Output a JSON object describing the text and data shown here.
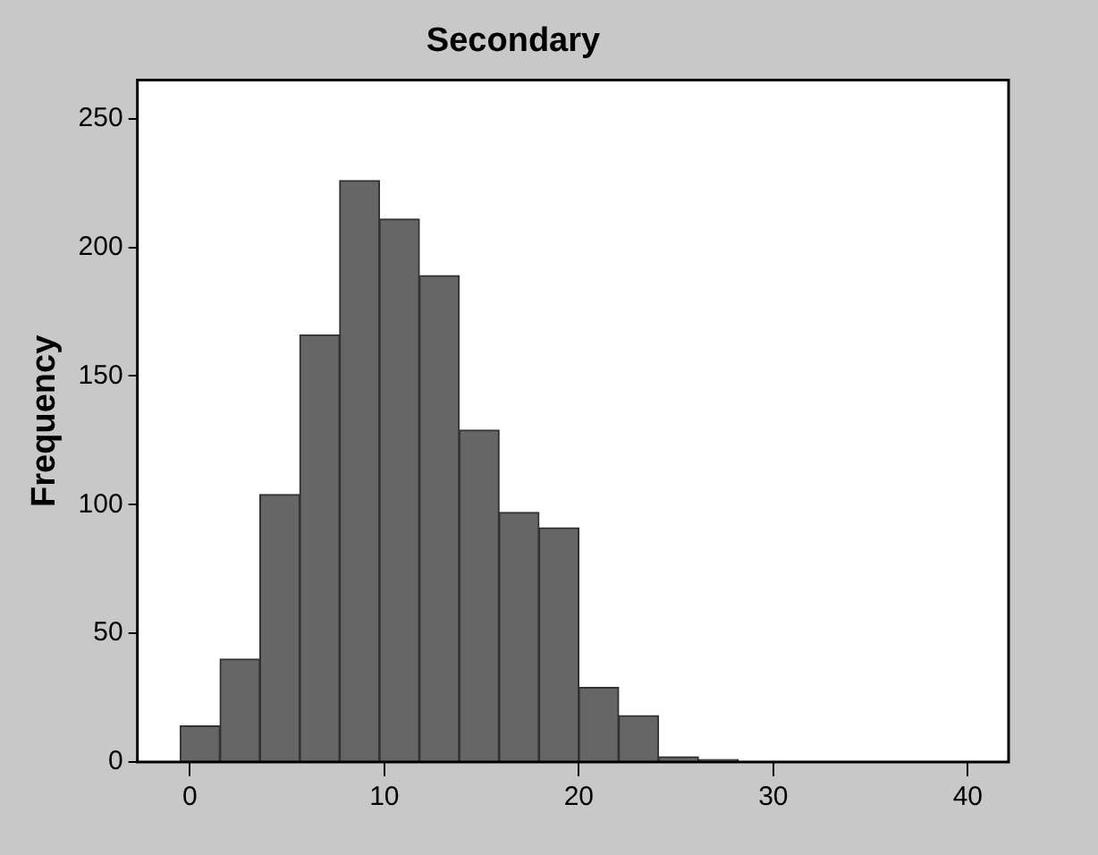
{
  "chart_data": {
    "type": "histogram",
    "title": "Secondary",
    "ylabel": "Frequency",
    "bins": [
      -0.5,
      1.55,
      3.6,
      5.65,
      7.7,
      9.75,
      11.8,
      13.85,
      15.9,
      17.95,
      20,
      22.05,
      24.1,
      26.15,
      28.2,
      30.25,
      32.3,
      34.35,
      36.4,
      38.45,
      40.5
    ],
    "values": [
      14,
      40,
      104,
      166,
      226,
      211,
      189,
      129,
      97,
      91,
      29,
      18,
      2,
      1,
      0,
      0,
      0,
      0,
      0,
      0
    ],
    "color": "#666666",
    "xlim": [
      -2.7,
      42.1
    ],
    "xticks": [
      0,
      10,
      20,
      30,
      40
    ],
    "ylim": [
      0,
      265
    ],
    "yticks": [
      0,
      50,
      100,
      150,
      200,
      250
    ],
    "grid": false,
    "legend": false
  }
}
